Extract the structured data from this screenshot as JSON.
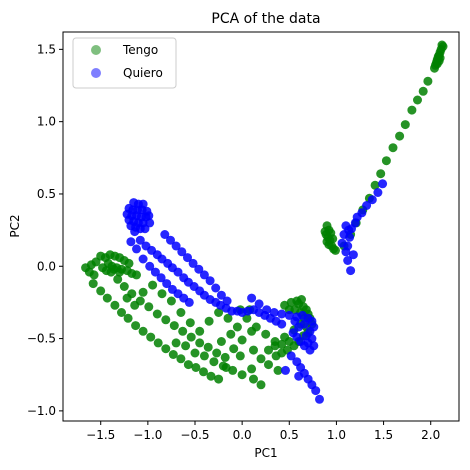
{
  "chart_data": {
    "type": "scatter",
    "title": "PCA of the data",
    "xlabel": "PC1",
    "ylabel": "PC2",
    "xlim": [
      -1.9,
      2.3
    ],
    "ylim": [
      -1.07,
      1.62
    ],
    "xticks": [
      -1.5,
      -1.0,
      -0.5,
      0.0,
      0.5,
      1.0,
      1.5,
      2.0
    ],
    "xtick_labels": [
      "−1.5",
      "−1.0",
      "−0.5",
      "0.0",
      "0.5",
      "1.0",
      "1.5",
      "2.0"
    ],
    "yticks": [
      -1.0,
      -0.5,
      0.0,
      0.5,
      1.0,
      1.5
    ],
    "ytick_labels": [
      "−1.0",
      "−0.5",
      "0.0",
      "0.5",
      "1.0",
      "1.5"
    ],
    "grid": false,
    "legend_position": "top-left",
    "series": [
      {
        "name": "Tengo",
        "color": "#008000",
        "points": [
          [
            2.12,
            1.53
          ],
          [
            2.13,
            1.52
          ],
          [
            2.11,
            1.5
          ],
          [
            2.1,
            1.48
          ],
          [
            2.09,
            1.46
          ],
          [
            2.08,
            1.45
          ],
          [
            2.1,
            1.44
          ],
          [
            2.07,
            1.43
          ],
          [
            2.09,
            1.42
          ],
          [
            2.06,
            1.41
          ],
          [
            2.05,
            1.39
          ],
          [
            2.07,
            1.4
          ],
          [
            2.04,
            1.37
          ],
          [
            1.97,
            1.28
          ],
          [
            1.92,
            1.21
          ],
          [
            1.86,
            1.15
          ],
          [
            1.8,
            1.08
          ],
          [
            1.73,
            0.98
          ],
          [
            1.67,
            0.9
          ],
          [
            1.6,
            0.82
          ],
          [
            1.53,
            0.73
          ],
          [
            1.47,
            0.64
          ],
          [
            1.41,
            0.56
          ],
          [
            1.35,
            0.47
          ],
          [
            1.28,
            0.39
          ],
          [
            1.21,
            0.3
          ],
          [
            1.15,
            0.22
          ],
          [
            1.08,
            0.14
          ],
          [
            0.9,
            0.28
          ],
          [
            0.92,
            0.25
          ],
          [
            0.89,
            0.22
          ],
          [
            0.91,
            0.2
          ],
          [
            0.93,
            0.18
          ],
          [
            0.9,
            0.17
          ],
          [
            0.92,
            0.15
          ],
          [
            0.95,
            0.14
          ],
          [
            0.97,
            0.12
          ],
          [
            0.99,
            0.11
          ],
          [
            0.94,
            0.23
          ],
          [
            0.96,
            0.19
          ],
          [
            0.88,
            0.24
          ],
          [
            -1.35,
            0.07
          ],
          [
            -1.4,
            0.08
          ],
          [
            -1.45,
            0.06
          ],
          [
            -1.5,
            0.07
          ],
          [
            -1.3,
            0.06
          ],
          [
            -1.25,
            0.04
          ],
          [
            -1.2,
            0.02
          ],
          [
            -1.42,
            0.02
          ],
          [
            -1.38,
            0.0
          ],
          [
            -1.33,
            -0.01
          ],
          [
            -1.28,
            -0.02
          ],
          [
            -1.22,
            -0.03
          ],
          [
            -1.17,
            -0.05
          ],
          [
            -1.12,
            -0.06
          ],
          [
            -1.55,
            0.03
          ],
          [
            -1.6,
            0.01
          ],
          [
            -1.48,
            -0.01
          ],
          [
            -1.44,
            -0.03
          ],
          [
            -1.39,
            -0.04
          ],
          [
            -1.66,
            -0.01
          ],
          [
            -1.62,
            -0.04
          ],
          [
            -1.57,
            -0.06
          ],
          [
            -1.36,
            -0.02
          ],
          [
            -1.3,
            -0.04
          ],
          [
            -1.58,
            -0.12
          ],
          [
            -1.5,
            -0.17
          ],
          [
            -1.43,
            -0.22
          ],
          [
            -1.35,
            -0.27
          ],
          [
            -1.28,
            -0.32
          ],
          [
            -1.21,
            -0.36
          ],
          [
            -1.13,
            -0.41
          ],
          [
            -1.05,
            -0.45
          ],
          [
            -0.97,
            -0.49
          ],
          [
            -0.89,
            -0.53
          ],
          [
            -0.81,
            -0.57
          ],
          [
            -0.73,
            -0.61
          ],
          [
            -0.65,
            -0.64
          ],
          [
            -0.57,
            -0.68
          ],
          [
            -0.49,
            -0.7
          ],
          [
            -0.41,
            -0.73
          ],
          [
            -0.33,
            -0.76
          ],
          [
            -0.25,
            -0.78
          ],
          [
            -0.17,
            -0.7
          ],
          [
            -1.32,
            -0.09
          ],
          [
            -1.25,
            -0.14
          ],
          [
            -1.17,
            -0.19
          ],
          [
            -1.08,
            -0.24
          ],
          [
            -0.99,
            -0.28
          ],
          [
            -0.9,
            -0.33
          ],
          [
            -0.81,
            -0.37
          ],
          [
            -0.72,
            -0.41
          ],
          [
            -0.63,
            -0.45
          ],
          [
            -0.54,
            -0.49
          ],
          [
            -0.45,
            -0.53
          ],
          [
            -0.36,
            -0.56
          ],
          [
            -0.27,
            -0.6
          ],
          [
            -0.18,
            -0.63
          ],
          [
            -0.09,
            -0.57
          ],
          [
            0.0,
            -0.51
          ],
          [
            0.1,
            -0.45
          ],
          [
            -1.22,
            -0.22
          ],
          [
            -1.14,
            -0.27
          ],
          [
            -1.05,
            -0.18
          ],
          [
            -0.95,
            -0.13
          ],
          [
            -0.85,
            -0.19
          ],
          [
            -0.75,
            -0.24
          ],
          [
            -0.65,
            -0.32
          ],
          [
            -0.55,
            -0.39
          ],
          [
            -0.45,
            -0.45
          ],
          [
            -0.35,
            -0.38
          ],
          [
            -0.25,
            -0.32
          ],
          [
            -0.15,
            -0.36
          ],
          [
            -0.05,
            -0.42
          ],
          [
            0.05,
            -0.36
          ],
          [
            0.15,
            -0.42
          ],
          [
            0.25,
            -0.47
          ],
          [
            0.35,
            -0.52
          ],
          [
            0.45,
            -0.49
          ],
          [
            0.55,
            -0.44
          ],
          [
            0.62,
            -0.4
          ],
          [
            -0.7,
            -0.53
          ],
          [
            -0.6,
            -0.55
          ],
          [
            -0.5,
            -0.6
          ],
          [
            -0.4,
            -0.62
          ],
          [
            -0.3,
            -0.66
          ],
          [
            -0.2,
            -0.69
          ],
          [
            -0.1,
            -0.72
          ],
          [
            0.0,
            -0.75
          ],
          [
            0.1,
            -0.71
          ],
          [
            0.2,
            -0.64
          ],
          [
            0.28,
            -0.58
          ],
          [
            0.35,
            -0.55
          ],
          [
            0.42,
            -0.54
          ],
          [
            0.5,
            -0.52
          ],
          [
            0.2,
            -0.82
          ],
          [
            0.12,
            -0.78
          ],
          [
            0.45,
            -0.27
          ],
          [
            0.52,
            -0.25
          ],
          [
            0.58,
            -0.24
          ],
          [
            0.63,
            -0.23
          ],
          [
            0.6,
            -0.26
          ],
          [
            0.65,
            -0.28
          ],
          [
            0.68,
            -0.3
          ],
          [
            0.7,
            -0.33
          ],
          [
            0.72,
            -0.36
          ],
          [
            0.74,
            -0.4
          ],
          [
            0.66,
            -0.36
          ],
          [
            0.62,
            -0.32
          ],
          [
            0.56,
            -0.3
          ],
          [
            0.5,
            -0.3
          ],
          [
            0.68,
            -0.42
          ],
          [
            0.7,
            -0.46
          ],
          [
            0.65,
            -0.48
          ],
          [
            0.6,
            -0.52
          ],
          [
            0.55,
            -0.55
          ],
          [
            0.48,
            -0.58
          ],
          [
            0.42,
            -0.6
          ],
          [
            0.36,
            -0.62
          ],
          [
            -0.02,
            -0.3
          ],
          [
            0.08,
            -0.3
          ],
          [
            -0.12,
            -0.47
          ],
          [
            -0.22,
            -0.52
          ],
          [
            -0.02,
            -0.62
          ],
          [
            0.12,
            -0.58
          ],
          [
            0.28,
            -0.68
          ],
          [
            0.38,
            -0.72
          ]
        ]
      },
      {
        "name": "Quiero",
        "color": "#0000ff",
        "points": [
          [
            -1.15,
            0.44
          ],
          [
            -1.1,
            0.43
          ],
          [
            -1.05,
            0.43
          ],
          [
            -1.2,
            0.4
          ],
          [
            -1.16,
            0.39
          ],
          [
            -1.11,
            0.39
          ],
          [
            -1.06,
            0.39
          ],
          [
            -1.01,
            0.38
          ],
          [
            -1.22,
            0.36
          ],
          [
            -1.17,
            0.35
          ],
          [
            -1.12,
            0.35
          ],
          [
            -1.07,
            0.34
          ],
          [
            -1.02,
            0.34
          ],
          [
            -1.2,
            0.32
          ],
          [
            -1.15,
            0.31
          ],
          [
            -1.1,
            0.3
          ],
          [
            -1.05,
            0.3
          ],
          [
            -1.18,
            0.28
          ],
          [
            -1.13,
            0.27
          ],
          [
            -1.08,
            0.26
          ],
          [
            -1.03,
            0.26
          ],
          [
            -0.98,
            0.3
          ],
          [
            -0.99,
            0.35
          ],
          [
            -1.14,
            0.24
          ],
          [
            -1.08,
            0.18
          ],
          [
            -1.02,
            0.14
          ],
          [
            -0.96,
            0.11
          ],
          [
            -0.9,
            0.08
          ],
          [
            -0.85,
            0.05
          ],
          [
            -0.79,
            0.02
          ],
          [
            -0.74,
            -0.01
          ],
          [
            -0.68,
            -0.04
          ],
          [
            -0.62,
            -0.08
          ],
          [
            -0.57,
            -0.11
          ],
          [
            -0.51,
            -0.14
          ],
          [
            -0.45,
            -0.17
          ],
          [
            -0.4,
            -0.2
          ],
          [
            -0.34,
            -0.23
          ],
          [
            -0.28,
            -0.25
          ],
          [
            -0.23,
            -0.27
          ],
          [
            -0.17,
            -0.29
          ],
          [
            -0.11,
            -0.31
          ],
          [
            -0.05,
            -0.31
          ],
          [
            0.0,
            -0.32
          ],
          [
            0.06,
            -0.31
          ],
          [
            0.12,
            -0.3
          ],
          [
            0.18,
            -0.32
          ],
          [
            0.24,
            -0.34
          ],
          [
            0.3,
            -0.36
          ],
          [
            0.36,
            -0.38
          ],
          [
            0.42,
            -0.4
          ],
          [
            -1.18,
            0.17
          ],
          [
            -1.12,
            0.12
          ],
          [
            -1.05,
            0.05
          ],
          [
            -0.98,
            0.0
          ],
          [
            -0.92,
            -0.04
          ],
          [
            -0.86,
            -0.08
          ],
          [
            -0.8,
            -0.12
          ],
          [
            -0.74,
            -0.16
          ],
          [
            -0.68,
            -0.19
          ],
          [
            -0.62,
            -0.22
          ],
          [
            -0.56,
            -0.25
          ],
          [
            -0.82,
            0.22
          ],
          [
            -0.76,
            0.18
          ],
          [
            -0.7,
            0.14
          ],
          [
            -0.64,
            0.1
          ],
          [
            -0.58,
            0.06
          ],
          [
            -0.52,
            0.02
          ],
          [
            -0.46,
            -0.02
          ],
          [
            -0.4,
            -0.06
          ],
          [
            -0.34,
            -0.1
          ],
          [
            -0.28,
            -0.15
          ],
          [
            -0.22,
            -0.2
          ],
          [
            -0.16,
            -0.24
          ],
          [
            0.1,
            -0.22
          ],
          [
            0.18,
            -0.26
          ],
          [
            0.26,
            -0.3
          ],
          [
            0.34,
            -0.32
          ],
          [
            0.42,
            -0.33
          ],
          [
            0.5,
            -0.34
          ],
          [
            0.58,
            -0.35
          ],
          [
            0.64,
            -0.34
          ],
          [
            0.7,
            -0.36
          ],
          [
            0.74,
            -0.38
          ],
          [
            0.76,
            -0.42
          ],
          [
            0.72,
            -0.45
          ],
          [
            0.68,
            -0.48
          ],
          [
            0.74,
            -0.5
          ],
          [
            0.7,
            -0.53
          ],
          [
            0.76,
            -0.55
          ],
          [
            0.72,
            -0.58
          ],
          [
            0.66,
            -0.55
          ],
          [
            0.62,
            -0.52
          ],
          [
            0.58,
            -0.49
          ],
          [
            0.54,
            -0.46
          ],
          [
            0.6,
            -0.42
          ],
          [
            0.66,
            -0.4
          ],
          [
            0.56,
            -0.38
          ],
          [
            0.52,
            -0.62
          ],
          [
            0.58,
            -0.66
          ],
          [
            0.62,
            -0.7
          ],
          [
            0.66,
            -0.74
          ],
          [
            0.7,
            -0.78
          ],
          [
            0.74,
            -0.82
          ],
          [
            0.78,
            -0.86
          ],
          [
            0.6,
            -0.76
          ],
          [
            0.46,
            -0.72
          ],
          [
            0.82,
            -0.92
          ],
          [
            1.12,
            0.14
          ],
          [
            1.14,
            0.2
          ],
          [
            1.16,
            0.26
          ],
          [
            1.2,
            0.3
          ],
          [
            1.1,
            0.28
          ],
          [
            1.08,
            0.22
          ],
          [
            1.06,
            0.16
          ],
          [
            1.1,
            0.1
          ],
          [
            1.12,
            0.04
          ],
          [
            1.15,
            -0.03
          ],
          [
            1.18,
            0.08
          ],
          [
            1.13,
            0.25
          ],
          [
            1.22,
            0.34
          ],
          [
            1.27,
            0.37
          ],
          [
            1.32,
            0.42
          ],
          [
            1.38,
            0.46
          ],
          [
            1.44,
            0.51
          ],
          [
            1.49,
            0.57
          ]
        ]
      }
    ]
  }
}
